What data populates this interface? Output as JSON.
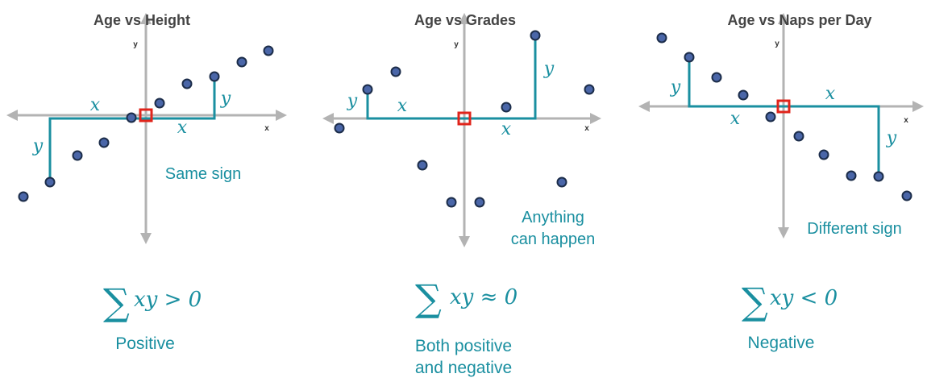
{
  "colors": {
    "axis": "#b3b3b3",
    "teal": "#1a8fa0",
    "origin": "#e0241b",
    "dot_fill": "#4a66a8",
    "dot_stroke": "#1c2d4a"
  },
  "axis_labels": {
    "x": "x",
    "y": "y"
  },
  "panels": [
    {
      "title": "Age vs Height",
      "note_lines": [
        "Same sign"
      ],
      "sum": {
        "sigma": "∑",
        "tail": "xy > 0"
      },
      "caption_lines": [
        "Positive"
      ]
    },
    {
      "title": "Age vs Grades",
      "note_lines": [
        "Anything",
        "can happen"
      ],
      "sum": {
        "sigma": "∑",
        "tail": "xy  ≈ 0"
      },
      "caption_lines": [
        "Both positive",
        "and negative"
      ]
    },
    {
      "title": "Age vs Naps per Day",
      "note_lines": [
        "Different sign"
      ],
      "sum": {
        "sigma": "∑",
        "tail": "xy  < 0"
      },
      "caption_lines": [
        "Negative"
      ]
    }
  ]
}
